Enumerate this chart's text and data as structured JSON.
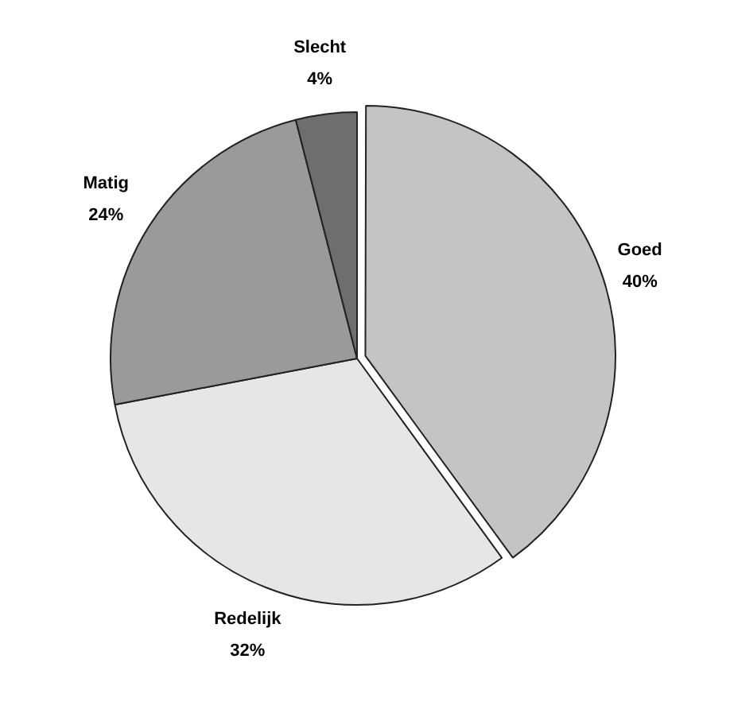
{
  "chart_data": {
    "type": "pie",
    "categories": [
      "Goed",
      "Redelijk",
      "Matig",
      "Slecht"
    ],
    "values": [
      40,
      32,
      24,
      4
    ],
    "value_labels": [
      "40%",
      "32%",
      "24%",
      "4%"
    ],
    "colors": [
      "#c4c4c4",
      "#e6e6e6",
      "#9a9a9a",
      "#6e6e6e"
    ],
    "legend": false
  }
}
